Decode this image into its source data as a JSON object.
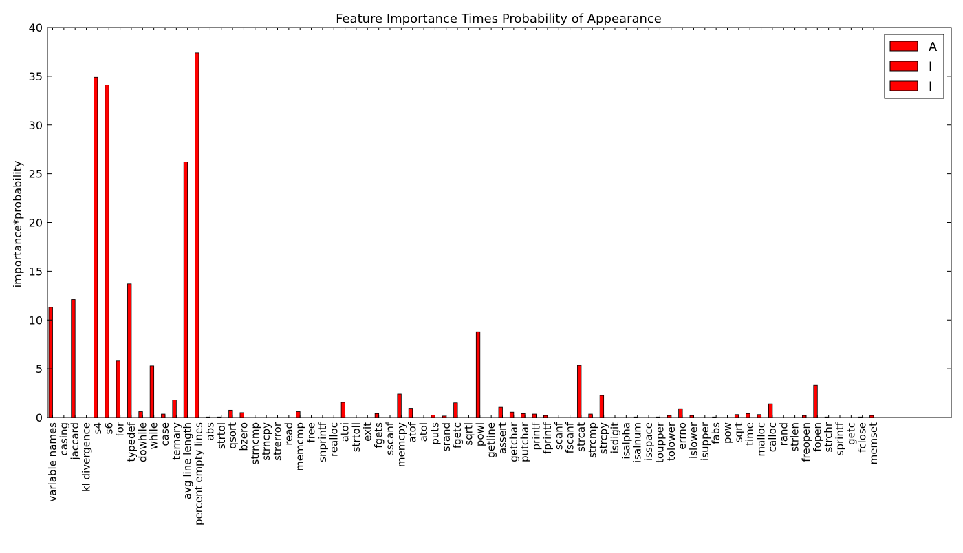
{
  "chart_data": {
    "type": "bar",
    "title": "Feature Importance Times Probability of Appearance",
    "xlabel": "",
    "ylabel": "importance*probability",
    "ylim": [
      0,
      40
    ],
    "yticks": [
      0,
      5,
      10,
      15,
      20,
      25,
      30,
      35,
      40
    ],
    "grid": false,
    "legend_position": "top-right",
    "legend": [
      "A",
      "l",
      "l"
    ],
    "bar_color": "#ff0000",
    "edge_color": "#000000",
    "categories": [
      "variable names",
      "casing",
      "jaccard",
      "kl divergence",
      "s4",
      "s6",
      "for",
      "typedef",
      "dowhile",
      "while",
      "case",
      "ternary",
      "avg line length",
      "percent empty lines",
      "abs",
      "strtol",
      "qsort",
      "bzero",
      "strncmp",
      "strncpy",
      "strerror",
      "read",
      "memcmp",
      "free",
      "snprintf",
      "realloc",
      "atoi",
      "strtoll",
      "exit",
      "fgets",
      "sscanf",
      "memcpy",
      "atof",
      "atol",
      "puts",
      "srand",
      "fgetc",
      "sqrtl",
      "powl",
      "getline",
      "assert",
      "getchar",
      "putchar",
      "printf",
      "fprintf",
      "scanf",
      "fscanf",
      "strcat",
      "strcmp",
      "strcpy",
      "isdigit",
      "isalpha",
      "isalnum",
      "isspace",
      "toupper",
      "tolower",
      "errno",
      "islower",
      "isupper",
      "fabs",
      "pow",
      "sqrt",
      "time",
      "malloc",
      "calloc",
      "rand",
      "strlen",
      "freopen",
      "fopen",
      "strchr",
      "sprintf",
      "getc",
      "fclose",
      "memset"
    ],
    "values": [
      11.3,
      0,
      12.1,
      0,
      34.9,
      34.1,
      5.8,
      13.7,
      0.6,
      5.3,
      0.35,
      1.8,
      26.2,
      37.4,
      0.05,
      0.05,
      0.75,
      0.5,
      0,
      0,
      0,
      0,
      0.6,
      0,
      0,
      0,
      1.55,
      0,
      0,
      0.4,
      0,
      2.4,
      0.95,
      0,
      0.25,
      0.15,
      1.5,
      0,
      8.8,
      0,
      1.05,
      0.55,
      0.4,
      0.35,
      0.2,
      0,
      0,
      5.35,
      0.35,
      2.25,
      0,
      0,
      0.05,
      0,
      0.05,
      0.2,
      0.9,
      0.2,
      0,
      0.05,
      0,
      0.3,
      0.4,
      0.3,
      1.4,
      0,
      0,
      0.2,
      3.3,
      0.05,
      0,
      0,
      0.05,
      0.2
    ]
  }
}
